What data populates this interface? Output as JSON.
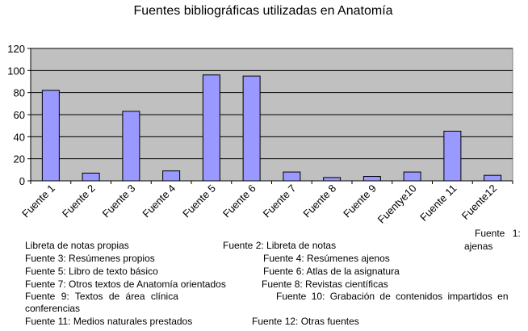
{
  "chart_data": {
    "type": "bar",
    "title": "Fuentes bibliográficas utilizadas en Anatomía",
    "categories": [
      "Fuente 1",
      "Fuente 2",
      "Fuente 3",
      "Fuente 4",
      "Fuente 5",
      "Fuente 6",
      "Fuente 7",
      "Fuente 8",
      "Fuente 9",
      "Fuentye10",
      "Fuente 11",
      "Fuente12"
    ],
    "values": [
      82,
      7,
      63,
      9,
      96,
      95,
      8,
      3,
      4,
      8,
      45,
      5
    ],
    "yticks": [
      0,
      20,
      40,
      60,
      80,
      100,
      120
    ],
    "ylim": [
      0,
      120
    ],
    "xlabel": "",
    "ylabel": "",
    "grid": true,
    "legend": "none"
  },
  "notes": {
    "f1a": "Fuente 1:",
    "f1b": "ajenas",
    "l1": "Libreta de notas propias",
    "f2": "Fuente 2: Libreta de notas",
    "f3": "Fuente 3: Resúmenes propios",
    "f4": "Fuente 4: Resúmenes ajenos",
    "f5": "Fuente 5: Libro de texto básico",
    "f6": "Fuente 6: Atlas de la asignatura",
    "f7": "Fuente 7: Otros textos de Anatomía orientados",
    "f8": "Fuente 8: Revistas científicas",
    "f9": "Fuente 9: Textos de área clínica",
    "f10": "Fuente 10: Grabación de contenidos impartidos en",
    "l9": "conferencias",
    "f11": "Fuente 11: Medios naturales prestados",
    "f12": "Fuente 12: Otras fuentes"
  },
  "colors": {
    "plot_bg": "#c0c0c0",
    "bar": "#9999ff",
    "bar_stroke": "#000000",
    "grid": "#000000"
  }
}
